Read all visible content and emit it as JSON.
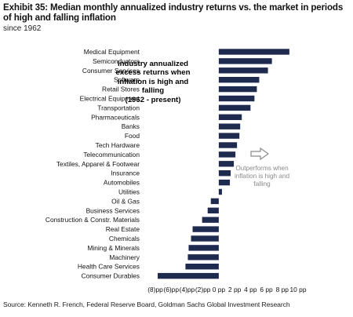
{
  "header": {
    "title": "Exhibit 35: Median monthly annualized industry returns vs. the market in periods of high and falling inflation",
    "subtitle": "since 1962"
  },
  "footer": {
    "source": "Source: Kenneth R. French, Federal Reserve Board, Goldman Sachs Global Investment Research"
  },
  "annotations": {
    "main_lines": [
      "Industry annualized",
      "excess returns when",
      "inflation is high and",
      "falling",
      "(1962 - present)"
    ],
    "outperforms_lines": [
      "Outperforms when",
      "inflation is high and",
      "falling"
    ]
  },
  "colors": {
    "bar": "#1f2a4f",
    "annotation_gray": "#8a8a8a"
  },
  "chart_data": {
    "type": "bar",
    "orientation": "horizontal",
    "categories": [
      "Medical Equipment",
      "Semiconductors",
      "Consumer Services",
      "Software",
      "Retail Stores",
      "Electrical Equipment",
      "Transportation",
      "Pharmaceuticals",
      "Banks",
      "Food",
      "Tech Hardware",
      "Telecommunication",
      "Textiles, Apparel & Footwear",
      "Insurance",
      "Automobiles",
      "Utilities",
      "Oil & Gas",
      "Business Services",
      "Construction & Constr. Materials",
      "Real Estate",
      "Chemicals",
      "Mining & Minerals",
      "Machinery",
      "Health Care Services",
      "Consumer Durables"
    ],
    "values": [
      8.9,
      6.7,
      6.2,
      5.1,
      4.8,
      4.5,
      4.0,
      2.9,
      2.7,
      2.6,
      2.3,
      2.1,
      1.9,
      1.5,
      1.4,
      0.4,
      -1.0,
      -1.4,
      -2.1,
      -3.3,
      -3.5,
      -3.8,
      -3.9,
      -4.2,
      -7.7
    ],
    "xlim": [
      -8,
      10
    ],
    "tick_values": [
      -8,
      -6,
      -4,
      -2,
      0,
      2,
      4,
      6,
      8,
      10
    ],
    "tick_labels": [
      "(8)pp",
      "(6)pp",
      "(4)pp",
      "(2)pp",
      "0 pp",
      "2 pp",
      "4 pp",
      "6 pp",
      "8 pp",
      "10 pp"
    ],
    "grid": false,
    "legend": "none"
  }
}
